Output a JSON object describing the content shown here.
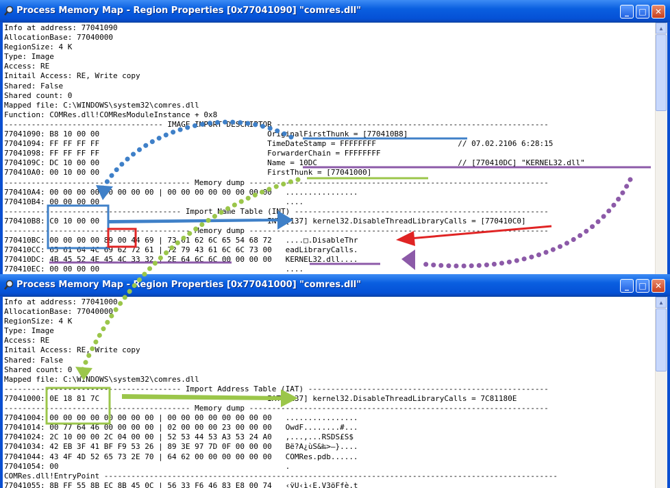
{
  "window1": {
    "title": "Process Memory Map - Region Properties [0x77041090] \"comres.dll\"",
    "lines": [
      "Info at address: 77041090",
      "AllocationBase: 77040000",
      "RegionSize: 4 K",
      "Type: Image",
      "Access: RE",
      "Initail Access: RE, Write copy",
      "Shared: False",
      "Shared count: 0",
      "Mapped file: C:\\WINDOWS\\system32\\comres.dll",
      "Function: COMRes.dll!COMResModuleInstance + 0x8",
      "----------------------------------- IMAGE IMPORT DESCRIPTOR ------------------------------------------------------------",
      "77041090: B8 10 00 00                                     OriginalFirstThunk = [770410B8]",
      "77041094: FF FF FF FF                                     TimeDateStamp = FFFFFFFF                  // 07.02.2106 6:28:15",
      "77041098: FF FF FF FF                                     ForwarderChain = FFFFFFFF",
      "7704109C: DC 10 00 00                                     Name = 10DC                               // [770410DC] \"KERNEL32.dll\"",
      "770410A0: 00 10 00 00                                     FirstThunk = [77041000]",
      "----------------------------------------- Memory dump ------------------------------------------------------------------",
      "770410A4: 00 00 00 00 00 00 00 00 | 00 00 00 00 00 00 00 00   ................",
      "770410B4: 00 00 00 00                                         ....",
      "--------------------------------------- Import Name Table (INT) --------------------------------------------------------",
      "770410B8: C0 10 00 00                                     INT [137] kernel32.DisableThreadLibraryCalls = [770410C0]",
      "----------------------------------------- Memory dump ------------------------------------------------------------------",
      "770410BC: 00 00 00 00 89 00 44 69 | 73 61 62 6C 65 54 68 72   ....□.DisableThr",
      "770410CC: 65 61 64 4C 69 62 72 61 | 72 79 43 61 6C 6C 73 00   eadLibraryCalls.",
      "770410DC: 4B 45 52 4E 45 4C 33 32 | 2E 64 6C 6C 00 00 00 00   KERNEL32.dll....",
      "770410EC: 00 00 00 00                                         ...."
    ]
  },
  "window2": {
    "title": "Process Memory Map - Region Properties [0x77041000] \"comres.dll\"",
    "lines": [
      "Info at address: 77041000",
      "AllocationBase: 77040000",
      "RegionSize: 4 K",
      "Type: Image",
      "Access: RE",
      "Initail Access: RE, Write copy",
      "Shared: False",
      "Shared count: 0",
      "Mapped file: C:\\WINDOWS\\system32\\comres.dll",
      "--------------------------------------- Import Address Table (IAT) -----------------------------------------------------",
      "77041000: 0E 18 81 7C                                     IAT [137] kernel32.DisableThreadLibraryCalls = 7C81180E",
      "----------------------------------------- Memory dump ------------------------------------------------------------------",
      "77041004: 00 00 00 00 00 00 00 00 | 00 00 00 00 00 00 00 00   ................",
      "77041014: 00 77 64 46 00 00 00 00 | 02 00 00 00 23 00 00 00   OwdF........#...",
      "77041024: 2C 10 00 00 2C 04 00 00 | 52 53 44 53 A3 53 24 A0   ,...,...RSDS£S$",
      "77041034: 42 EB 3F 41 BF F9 53 26 | 89 3E 97 7D 0F 00 00 00   Bë?A¿ùS&‰>—}....",
      "77041044: 43 4F 4D 52 65 73 2E 70 | 64 62 00 00 00 00 00 00   COMRes.pdb......",
      "77041054: 00                                                  .",
      "COMRes.dll!EntryPoint ----------------------------------------------------------------------------------------------------",
      "77041055: 8B FF 55 8B EC 8B 45 0C | 56 33 F6 46 83 E8 00 74   ‹ÿU‹ì‹E.V3öFƒè.t"
    ]
  },
  "buttons": {
    "minimize": "_",
    "maximize": "□",
    "close": "✕"
  },
  "colors": {
    "titlebar": "#0a5fe0",
    "blue_annotation": "#3f80c8",
    "green_annotation": "#9bc64a",
    "purple_annotation": "#8c5aa8",
    "red_annotation": "#e02424"
  }
}
